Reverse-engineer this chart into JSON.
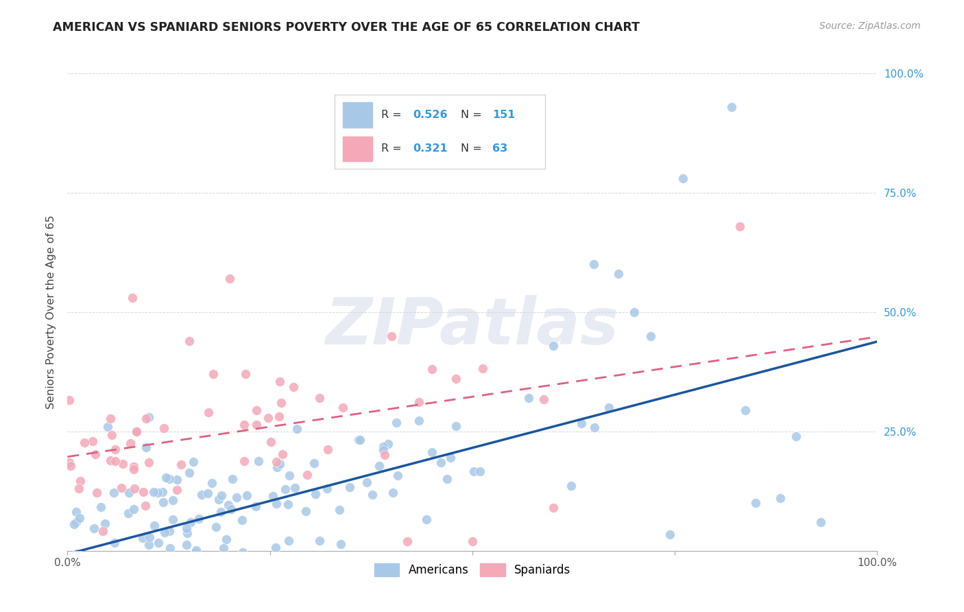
{
  "title": "AMERICAN VS SPANIARD SENIORS POVERTY OVER THE AGE OF 65 CORRELATION CHART",
  "source": "Source: ZipAtlas.com",
  "ylabel": "Seniors Poverty Over the Age of 65",
  "americans_R": "0.526",
  "americans_N": 151,
  "spaniards_R": "0.321",
  "spaniards_N": 63,
  "american_color": "#a8c8e8",
  "american_line_color": "#1a56a0",
  "spaniard_color": "#f4a8b8",
  "spaniard_line_color": "#e06080",
  "background_color": "#ffffff",
  "grid_color": "#cccccc",
  "watermark_color": "#d0d8e8",
  "seed": 7
}
